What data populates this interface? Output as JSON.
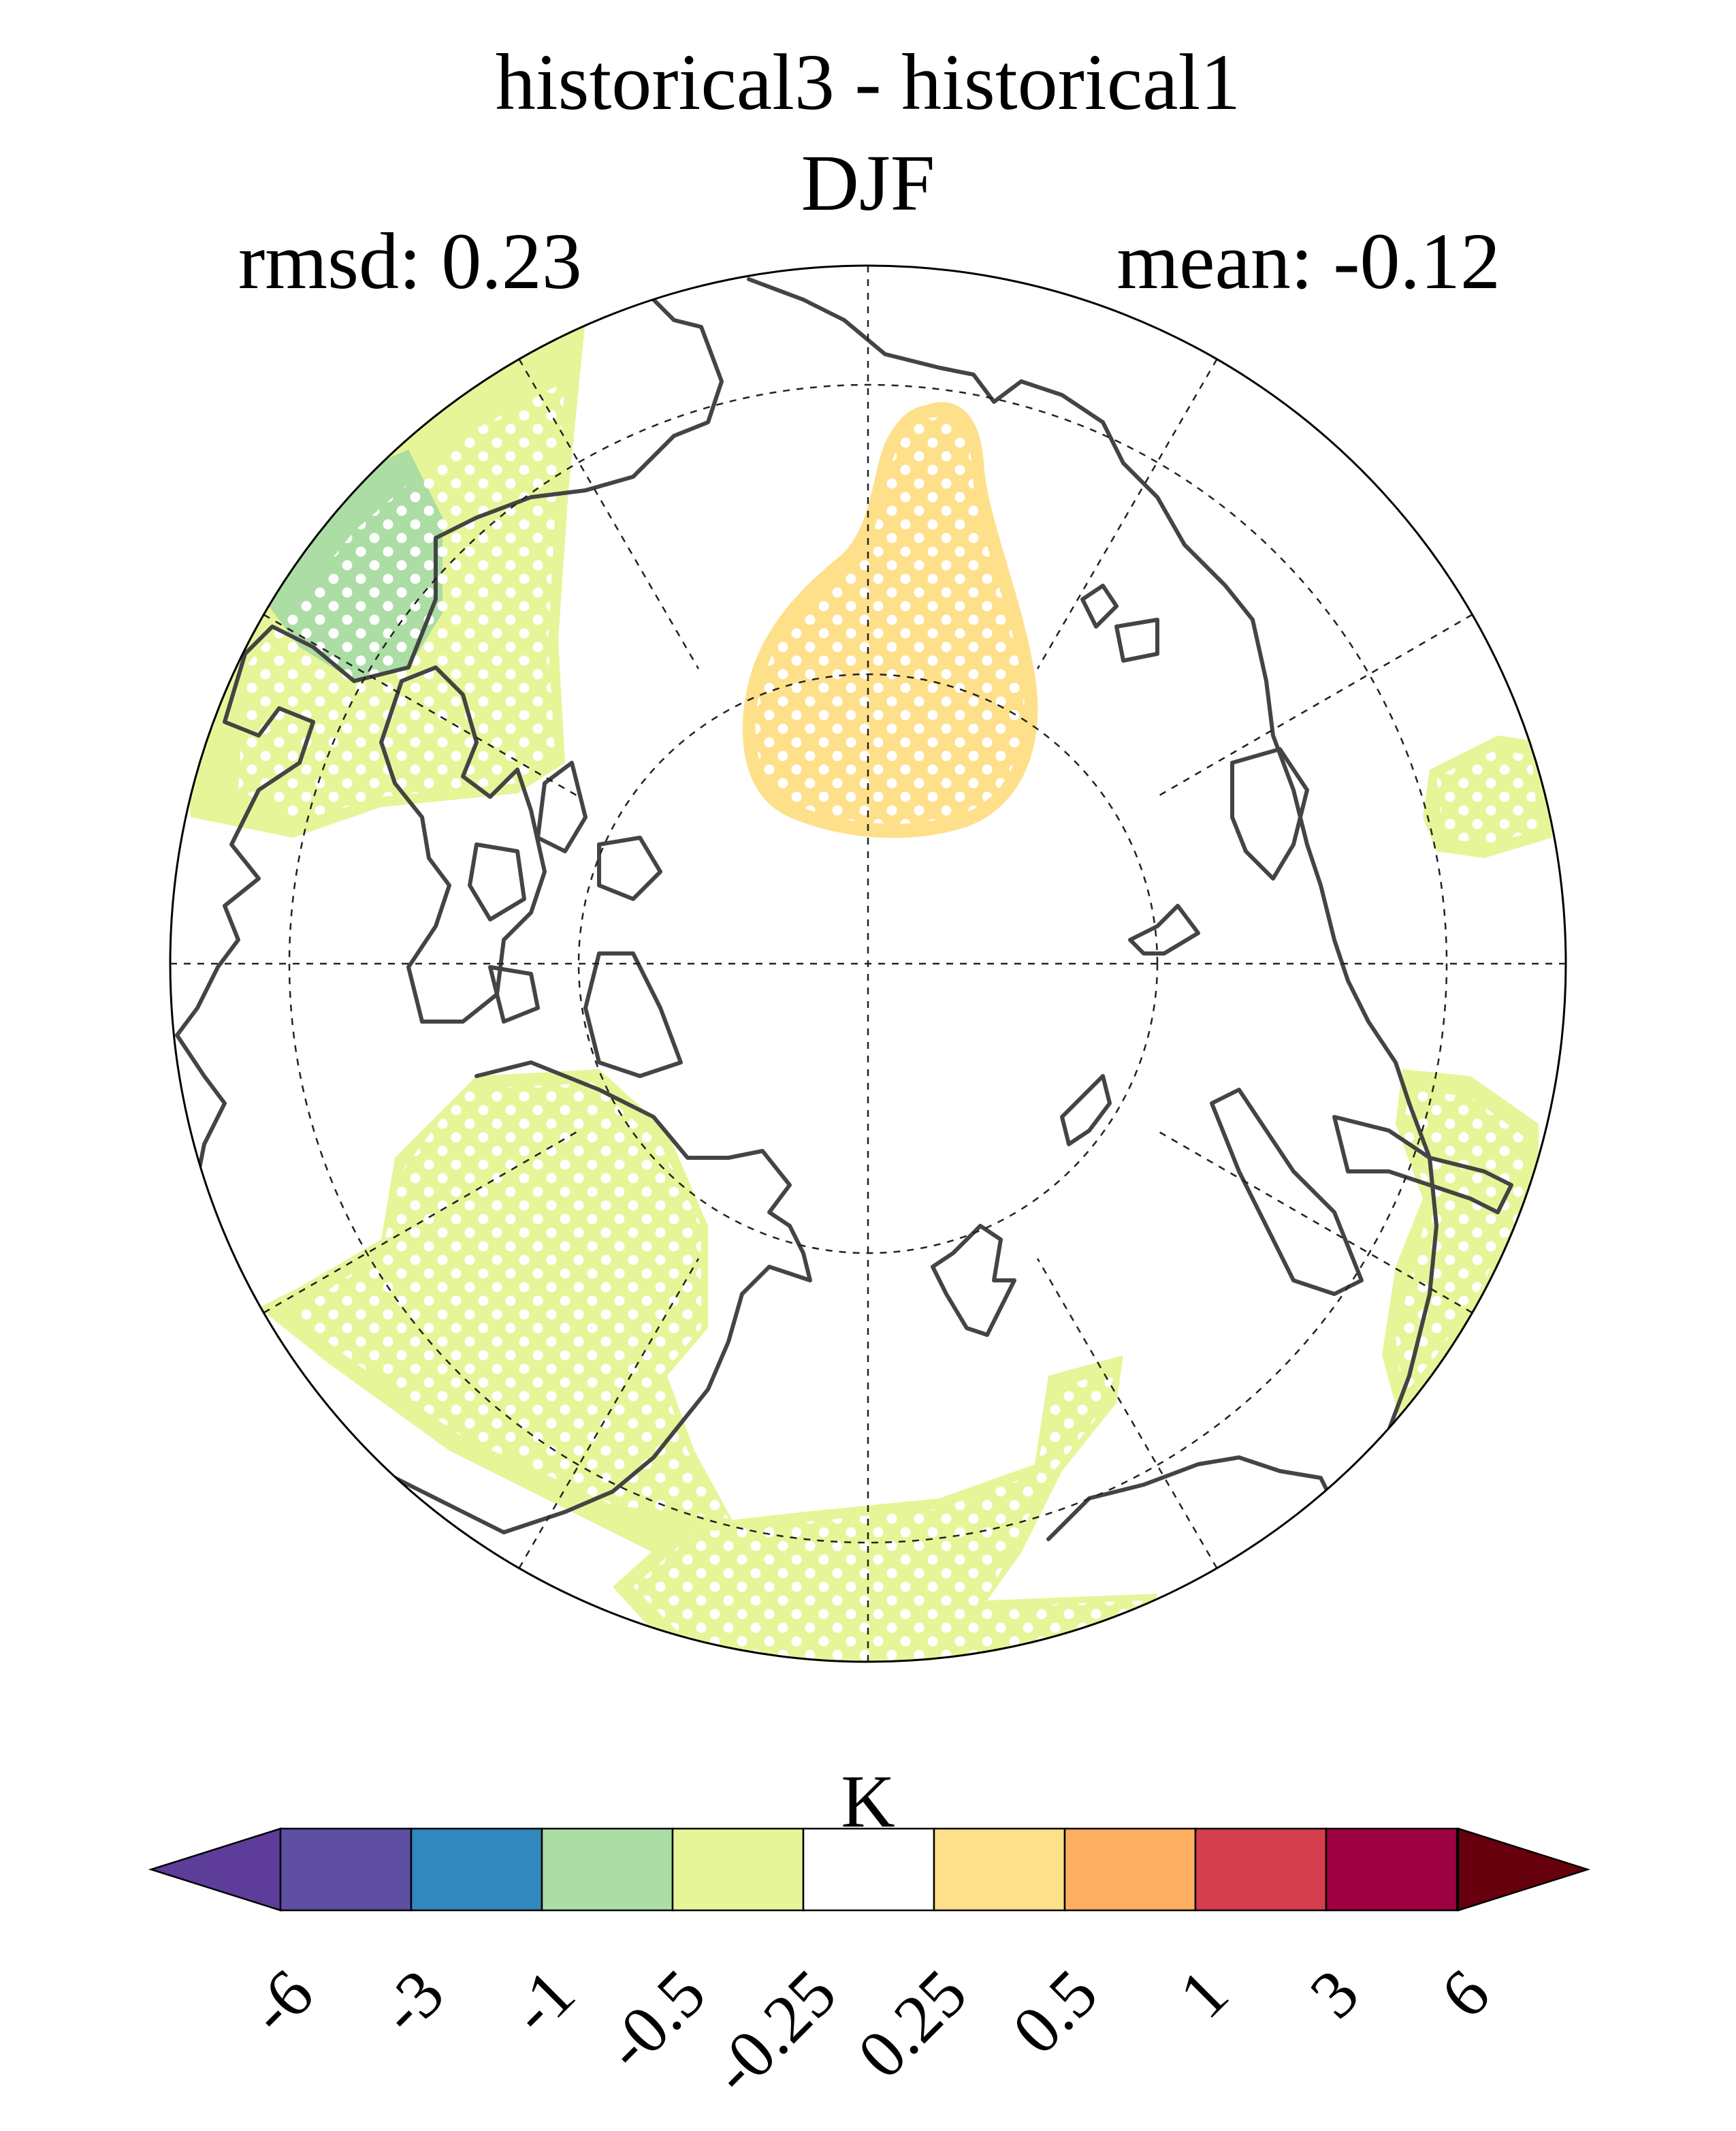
{
  "title": "historical3 - historical1",
  "subtitle": "DJF",
  "stats": {
    "rmsd_label": "rmsd: 0.23",
    "mean_label": "mean: -0.12"
  },
  "colorbar": {
    "unit": "K",
    "tick_labels": [
      "-6",
      "-3",
      "-1",
      "-0.5",
      "-0.25",
      "0.25",
      "0.5",
      "1",
      "3",
      "6"
    ],
    "colors": {
      "below_min": "#5e3c99",
      "bins": [
        "#5e4fa2",
        "#3288bd",
        "#abdda4",
        "#e6f598",
        "#ffffff",
        "#fee08b",
        "#fdae61",
        "#d53e4f",
        "#9e0142"
      ],
      "above_max": "#67000d"
    }
  },
  "chart_data": {
    "type": "polar-stereographic-map",
    "projection": "north-polar-stereographic",
    "variable_unit": "K",
    "gridlines": "dashed",
    "stippling": "white dots mark significant regions",
    "regions": [
      {
        "name": "central-arctic-anomaly",
        "bin": "0.25 to 0.5",
        "color": "#fee08b"
      },
      {
        "name": "greenland-anomaly",
        "bin": "-1 to -0.5",
        "color": "#abdda4"
      },
      {
        "name": "north-america-atlantic-anomaly",
        "bin": "-0.5 to -0.25",
        "color": "#e6f598"
      },
      {
        "name": "europe-scandinavia-anomaly",
        "bin": "-0.5 to -0.25",
        "color": "#e6f598"
      },
      {
        "name": "siberia-anomaly",
        "bin": "-0.5 to -0.25",
        "color": "#e6f598"
      },
      {
        "name": "east-asia-anomaly",
        "bin": "-0.5 to -0.25",
        "color": "#e6f598"
      },
      {
        "name": "far-east-anomaly",
        "bin": "-0.5 to -0.25",
        "color": "#e6f598"
      }
    ]
  }
}
